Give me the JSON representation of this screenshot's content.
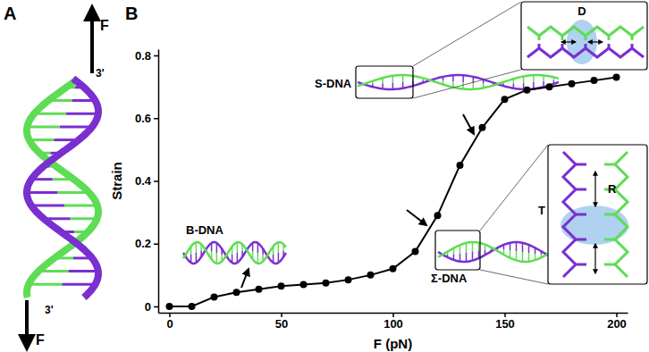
{
  "chart_data": {
    "type": "line",
    "xlabel": "F (pN)",
    "ylabel": "Strain",
    "x": [
      0,
      10,
      20,
      30,
      40,
      50,
      60,
      70,
      80,
      90,
      100,
      110,
      120,
      130,
      140,
      150,
      160,
      170,
      180,
      190,
      200
    ],
    "series": [
      {
        "name": "Strain",
        "color": "#000000",
        "marker": "circle",
        "line_style": "solid",
        "values": [
          0.0,
          0.0,
          0.03,
          0.045,
          0.055,
          0.065,
          0.07,
          0.075,
          0.085,
          0.1,
          0.12,
          0.175,
          0.29,
          0.45,
          0.57,
          0.66,
          0.69,
          0.7,
          0.71,
          0.72,
          0.73
        ]
      }
    ],
    "xlim": [
      -5,
      205
    ],
    "ylim": [
      -0.02,
      0.82
    ],
    "xticks": [
      0,
      50,
      100,
      150,
      200
    ],
    "yticks": [
      0,
      0.2,
      0.4,
      0.6,
      0.8
    ],
    "grid": false,
    "annotations": [
      "A",
      "B",
      "F",
      "F",
      "3'",
      "3'",
      "B-DNA",
      "S-DNA",
      "Σ-DNA",
      "D",
      "R",
      "T"
    ]
  }
}
